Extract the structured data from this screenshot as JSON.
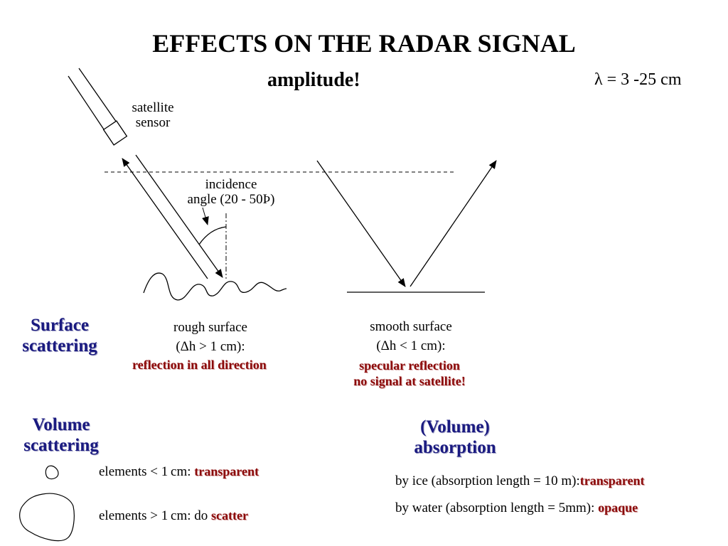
{
  "title": "EFFECTS ON THE RADAR SIGNAL",
  "subtitle": "amplitude!",
  "wavelength": "λ = 3 -25 cm",
  "diagram": {
    "sensor_line1": "satellite",
    "sensor_line2": "sensor",
    "incidence_line1": "incidence",
    "incidence_line2": "angle (20 - 50Þ)"
  },
  "surface_scattering": {
    "heading_line1": "Surface",
    "heading_line2": "scattering",
    "rough": {
      "line1": "rough surface",
      "line2": "(Δh > 1 cm):",
      "effect": "reflection in all direction"
    },
    "smooth": {
      "line1": "smooth surface",
      "line2": "(Δh < 1 cm):",
      "effect_line1": "specular reflection",
      "effect_line2": "no signal at satellite!"
    }
  },
  "volume_scattering": {
    "heading_line1": "Volume",
    "heading_line2": "scattering",
    "small_prefix": "elements < 1 cm: ",
    "small_effect": "transparent",
    "large_prefix": "elements > 1 cm: do ",
    "large_effect": "scatter"
  },
  "volume_absorption": {
    "heading_line1": "(Volume)",
    "heading_line2": "absorption",
    "ice_prefix": "by ice (absorption length = 10 m):",
    "ice_effect": "transparent",
    "water_prefix": "by water (absorption length = 5mm): ",
    "water_effect": "opaque"
  }
}
